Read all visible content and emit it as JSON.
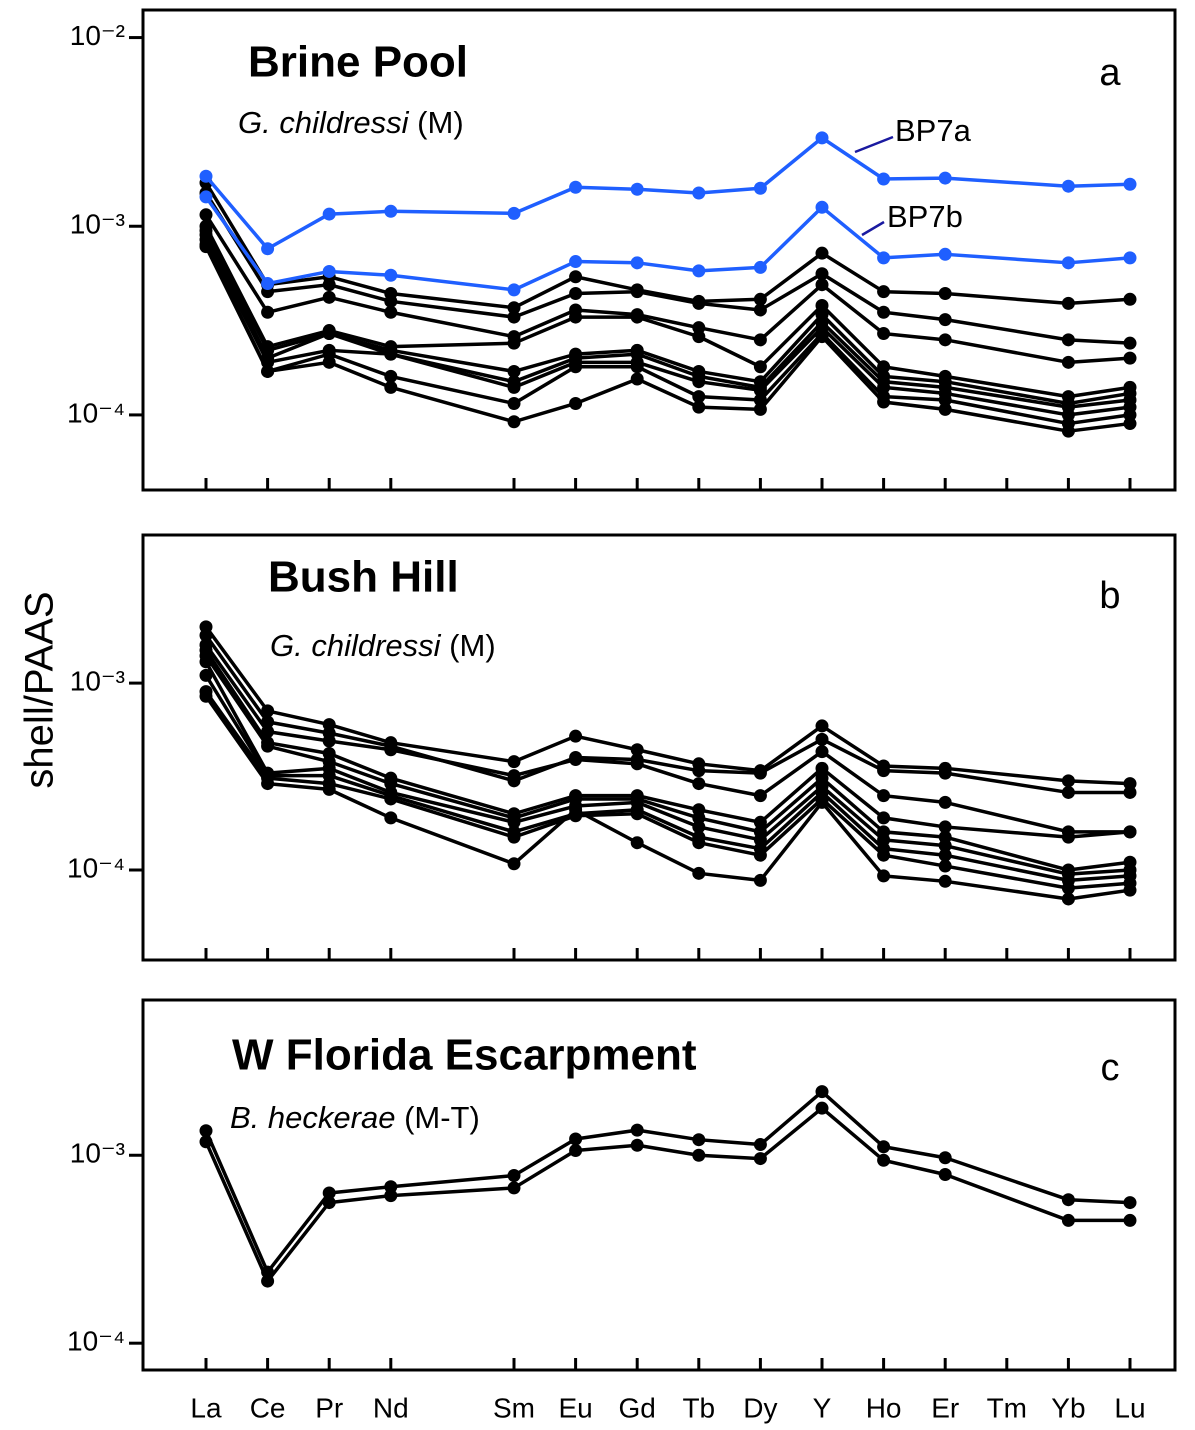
{
  "chart_data": [
    {
      "type": "line",
      "title": "Brine Pool",
      "subtitle_species": "G. childressi",
      "subtitle_note": "(M)",
      "panel_label": "a",
      "categories": [
        "La",
        "Ce",
        "Pr",
        "Nd",
        "Sm",
        "Eu",
        "Gd",
        "Tb",
        "Dy",
        "Y",
        "Ho",
        "Er",
        "Yb",
        "Lu"
      ],
      "log_scale": true,
      "ylim": [
        4e-05,
        0.014
      ],
      "yticks": [
        {
          "value": 0.0001,
          "label": "10⁻⁴"
        },
        {
          "value": 0.001,
          "label": "10⁻³"
        },
        {
          "value": 0.01,
          "label": "10⁻²"
        }
      ],
      "series": [
        {
          "color": "#000000",
          "values": [
            0.0017,
            0.00049,
            0.00054,
            0.00044,
            0.00037,
            0.00054,
            0.00046,
            0.0004,
            0.00041,
            0.00072,
            0.00045,
            0.00044,
            0.00039,
            0.00041
          ]
        },
        {
          "color": "#000000",
          "values": [
            0.0015,
            0.00045,
            0.00049,
            0.0004,
            0.00033,
            0.00044,
            0.00045,
            0.00039,
            0.00036,
            0.00056,
            0.00035,
            0.00032,
            0.00025,
            0.00024
          ]
        },
        {
          "color": "#000000",
          "values": [
            0.00115,
            0.00035,
            0.00042,
            0.00035,
            0.00026,
            0.00036,
            0.00034,
            0.00029,
            0.00025,
            0.00049,
            0.00027,
            0.00025,
            0.00019,
            0.0002
          ]
        },
        {
          "color": "#000000",
          "values": [
            0.001,
            0.00023,
            0.00028,
            0.00023,
            0.00024,
            0.00033,
            0.00033,
            0.00026,
            0.00018,
            0.00038,
            0.00018,
            0.00016,
            0.000125,
            0.00014
          ]
        },
        {
          "color": "#000000",
          "values": [
            0.00095,
            0.00022,
            0.00027,
            0.00022,
            0.00017,
            0.00021,
            0.00022,
            0.00017,
            0.00015,
            0.00034,
            0.00016,
            0.00015,
            0.000115,
            0.00013
          ]
        },
        {
          "color": "#000000",
          "values": [
            0.0009,
            0.0002,
            0.00027,
            0.00021,
            0.00015,
            0.0002,
            0.00021,
            0.00016,
            0.00014,
            0.00031,
            0.00015,
            0.00014,
            0.00011,
            0.00012
          ]
        },
        {
          "color": "#000000",
          "values": [
            0.00085,
            0.00019,
            0.00022,
            0.00021,
            0.00014,
            0.00019,
            0.00019,
            0.00015,
            0.000135,
            0.00029,
            0.00014,
            0.00013,
            0.0001,
            0.00011
          ]
        },
        {
          "color": "#000000",
          "values": [
            0.0008,
            0.00017,
            0.00021,
            0.00016,
            0.000115,
            0.00018,
            0.00018,
            0.000125,
            0.00012,
            0.00027,
            0.000125,
            0.00012,
            9e-05,
            0.0001
          ]
        },
        {
          "color": "#000000",
          "values": [
            0.00078,
            0.00017,
            0.00019,
            0.00014,
            9.2e-05,
            0.000115,
            0.000155,
            0.00011,
            0.000107,
            0.00026,
            0.000117,
            0.000107,
            8.2e-05,
            9e-05
          ]
        },
        {
          "name": "BP7b",
          "color": "#1f5fff",
          "values": [
            0.00143,
            0.000497,
            0.000576,
            0.00055,
            0.00046,
            0.00065,
            0.00064,
            0.00058,
            0.000605,
            0.00126,
            0.00068,
            0.00071,
            0.00064,
            0.00068
          ]
        },
        {
          "name": "BP7a",
          "color": "#1f5fff",
          "values": [
            0.00184,
            0.00076,
            0.00116,
            0.0012,
            0.00117,
            0.00161,
            0.00157,
            0.0015,
            0.00159,
            0.00294,
            0.00178,
            0.0018,
            0.00163,
            0.00167
          ]
        }
      ]
    },
    {
      "type": "line",
      "title": "Bush Hill",
      "subtitle_species": "G. childressi",
      "subtitle_note": "(M)",
      "panel_label": "b",
      "y_label": "shell/PAAS",
      "categories": [
        "La",
        "Ce",
        "Pr",
        "Nd",
        "Sm",
        "Eu",
        "Gd",
        "Tb",
        "Dy",
        "Y",
        "Ho",
        "Er",
        "Yb",
        "Lu"
      ],
      "log_scale": true,
      "ylim": [
        3.3e-05,
        0.0062
      ],
      "yticks": [
        {
          "value": 0.0001,
          "label": "10⁻⁴"
        },
        {
          "value": 0.001,
          "label": "10⁻³"
        }
      ],
      "series": [
        {
          "color": "#000000",
          "values": [
            0.002,
            0.00071,
            0.0006,
            0.00048,
            0.00038,
            0.00052,
            0.00044,
            0.00037,
            0.00034,
            0.00059,
            0.00036,
            0.00035,
            0.0003,
            0.00029
          ]
        },
        {
          "color": "#000000",
          "values": [
            0.0018,
            0.00062,
            0.00054,
            0.00046,
            0.0003,
            0.0004,
            0.00039,
            0.00034,
            0.00033,
            0.0005,
            0.00034,
            0.00033,
            0.00026,
            0.00026
          ]
        },
        {
          "color": "#000000",
          "values": [
            0.0016,
            0.00055,
            0.00049,
            0.00044,
            0.00032,
            0.00039,
            0.00037,
            0.00029,
            0.00025,
            0.00043,
            0.00025,
            0.00023,
            0.00016,
            0.00016
          ]
        },
        {
          "color": "#000000",
          "values": [
            0.0015,
            0.00048,
            0.00042,
            0.00031,
            0.0002,
            0.00025,
            0.00025,
            0.00021,
            0.00018,
            0.00035,
            0.00019,
            0.00017,
            0.00015,
            0.00016
          ]
        },
        {
          "color": "#000000",
          "values": [
            0.0014,
            0.00046,
            0.00038,
            0.00029,
            0.00019,
            0.00024,
            0.00024,
            0.00019,
            0.00016,
            0.00031,
            0.00016,
            0.00015,
            0.0001,
            0.00011
          ]
        },
        {
          "color": "#000000",
          "values": [
            0.0013,
            0.00033,
            0.00035,
            0.00026,
            0.00018,
            0.00022,
            0.00023,
            0.00017,
            0.000145,
            0.00028,
            0.000145,
            0.000135,
            9.5e-05,
            0.0001
          ]
        },
        {
          "color": "#000000",
          "values": [
            0.0011,
            0.00032,
            0.00032,
            0.00025,
            0.00016,
            0.0002,
            0.00021,
            0.00015,
            0.00013,
            0.00026,
            0.00013,
            0.00012,
            8.8e-05,
            9.3e-05
          ]
        },
        {
          "color": "#000000",
          "values": [
            0.0009,
            0.00031,
            0.00029,
            0.00024,
            0.00015,
            0.000195,
            0.0002,
            0.00014,
            0.00012,
            0.00024,
            0.00012,
            0.000105,
            8e-05,
            8.5e-05
          ]
        },
        {
          "color": "#000000",
          "values": [
            0.00085,
            0.00029,
            0.00027,
            0.00019,
            0.000108,
            0.00021,
            0.00014,
            9.6e-05,
            8.8e-05,
            0.00023,
            9.3e-05,
            8.7e-05,
            7e-05,
            7.8e-05
          ]
        }
      ]
    },
    {
      "type": "line",
      "title": "W Florida Escarpment",
      "subtitle_species": "B. heckerae",
      "subtitle_note": "(M-T)",
      "panel_label": "c",
      "categories": [
        "La",
        "Ce",
        "Pr",
        "Nd",
        "Sm",
        "Eu",
        "Gd",
        "Tb",
        "Dy",
        "Y",
        "Ho",
        "Er",
        "Yb",
        "Lu"
      ],
      "xticks": [
        "La",
        "Ce",
        "Pr",
        "Nd",
        "Sm",
        "Eu",
        "Gd",
        "Tb",
        "Dy",
        "Y",
        "Ho",
        "Er",
        "Tm",
        "Yb",
        "Lu"
      ],
      "log_scale": true,
      "ylim": [
        7.2e-05,
        0.0067
      ],
      "yticks": [
        {
          "value": 0.0001,
          "label": "10⁻⁴"
        },
        {
          "value": 0.001,
          "label": "10⁻³"
        }
      ],
      "series": [
        {
          "color": "#000000",
          "values": [
            0.00135,
            0.000239,
            0.00063,
            0.00068,
            0.00078,
            0.00122,
            0.00136,
            0.00121,
            0.00114,
            0.00218,
            0.00111,
            0.00097,
            0.00058,
            0.00056
          ]
        },
        {
          "color": "#000000",
          "values": [
            0.00118,
            0.000214,
            0.00056,
            0.00061,
            0.00067,
            0.00106,
            0.00113,
            0.001,
            0.00096,
            0.00178,
            0.00094,
            0.00079,
            0.00045,
            0.00045
          ]
        }
      ]
    }
  ]
}
